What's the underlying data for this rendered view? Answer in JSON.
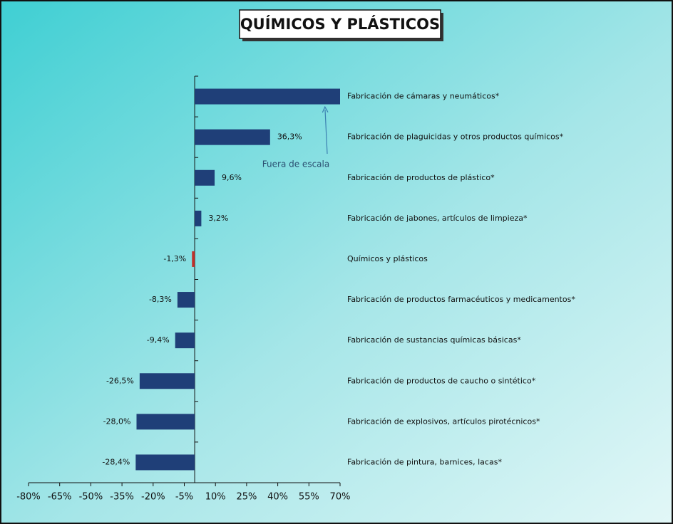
{
  "chart_data": {
    "type": "bar",
    "orientation": "horizontal",
    "title": "QUÍMICOS Y PLÁSTICOS",
    "annotation": "Fuera de escala",
    "categories": [
      "Fabricación de cámaras y neumáticos*",
      "Fabricación de plaguicidas y otros productos químicos*",
      "Fabricación de productos de plástico*",
      "Fabricación de jabones, artículos de limpieza*",
      "Químicos y plásticos",
      "Fabricación de productos farmacéuticos y medicamentos*",
      "Fabricación de sustancias químicas básicas*",
      "Fabricación de productos de caucho o sintético*",
      "Fabricación de explosivos, artículos pirotécnicos*",
      "Fabricación de pintura, barnices, lacas*"
    ],
    "values": [
      70,
      36.3,
      9.6,
      3.2,
      -1.3,
      -8.3,
      -9.4,
      -26.5,
      -28.0,
      -28.4
    ],
    "value_labels": [
      null,
      "36,3%",
      "9,6%",
      "3,2%",
      "-1,3%",
      "-8,3%",
      "-9,4%",
      "-26,5%",
      "-28,0%",
      "-28,4%"
    ],
    "colors": [
      "#1f3f78",
      "#1f3f78",
      "#1f3f78",
      "#1f3f78",
      "#c0302a",
      "#1f3f78",
      "#1f3f78",
      "#1f3f78",
      "#1f3f78",
      "#1f3f78"
    ],
    "xlim": [
      -80,
      70
    ],
    "xticks": [
      {
        "value": -80,
        "label": "-80%"
      },
      {
        "value": -65,
        "label": "-65%"
      },
      {
        "value": -50,
        "label": "-50%"
      },
      {
        "value": -35,
        "label": "-35%"
      },
      {
        "value": -20,
        "label": "-20%"
      },
      {
        "value": -5,
        "label": "-5%"
      },
      {
        "value": 10,
        "label": "10%"
      },
      {
        "value": 25,
        "label": "25%"
      },
      {
        "value": 40,
        "label": "40%"
      },
      {
        "value": 55,
        "label": "55%"
      },
      {
        "value": 70,
        "label": "70%"
      }
    ]
  }
}
